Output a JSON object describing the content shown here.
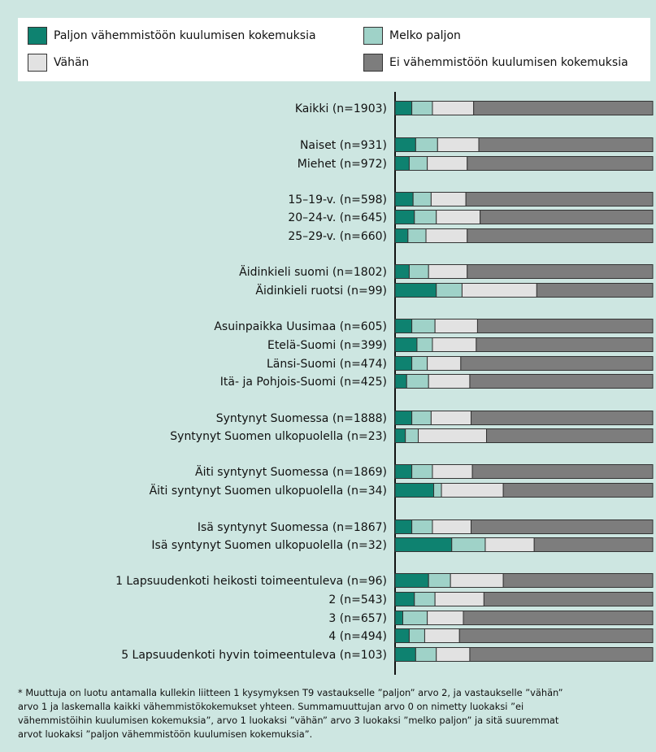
{
  "legend": {
    "items": [
      {
        "label": "Paljon vähemmistöön kuulumisen kokemuksia",
        "color": "#0e8270"
      },
      {
        "label": "Melko paljon",
        "color": "#9fd2c8"
      },
      {
        "label": "Vähän",
        "color": "#e2e2e2"
      },
      {
        "label": "Ei vähemmistöön kuulumisen kokemuksia",
        "color": "#7d7d7d"
      }
    ]
  },
  "chart_data": {
    "type": "bar",
    "orientation": "horizontal",
    "stacked": true,
    "xlim": [
      0,
      100
    ],
    "unit": "%",
    "grid": false,
    "legend_position": "top",
    "categories": [
      "Kaikki (n=1903)",
      "Naiset (n=931)",
      "Miehet (n=972)",
      "15–19-v. (n=598)",
      "20–24-v. (n=645)",
      "25–29-v. (n=660)",
      "Äidinkieli suomi (n=1802)",
      "Äidinkieli ruotsi (n=99)",
      "Asuinpaikka Uusimaa (n=605)",
      "Etelä-Suomi (n=399)",
      "Länsi-Suomi (n=474)",
      "Itä- ja Pohjois-Suomi (n=425)",
      "Syntynyt Suomessa (n=1888)",
      "Syntynyt Suomen ulkopuolella (n=23)",
      "Äiti syntynyt Suomessa (n=1869)",
      "Äiti syntynyt Suomen ulkopuolella (n=34)",
      "Isä syntynyt Suomessa (n=1867)",
      "Isä syntynyt Suomen ulkopuolella (n=32)",
      "1 Lapsuudenkoti heikosti toimeentuleva (n=96)",
      "2 (n=543)",
      "3 (n=657)",
      "4 (n=494)",
      "5 Lapsuudenkoti hyvin toimeentuleva (n=103)"
    ],
    "series": [
      {
        "name": "Paljon vähemmistöön kuulumisen kokemuksia",
        "values": [
          6.5,
          8,
          5.5,
          7,
          7.5,
          5,
          5.5,
          16,
          6.5,
          8.5,
          6.5,
          4.5,
          6.5,
          4,
          6.5,
          15,
          6.5,
          22,
          13,
          7.5,
          3,
          5.5,
          8
        ]
      },
      {
        "name": "Melko paljon",
        "values": [
          8,
          8.5,
          7,
          7,
          8.5,
          7,
          7.5,
          10,
          9,
          6,
          6,
          8.5,
          7.5,
          5,
          8,
          3,
          8,
          13,
          8.5,
          8,
          9.5,
          6,
          8
        ]
      },
      {
        "name": "Vähän",
        "values": [
          16,
          16,
          15.5,
          13.5,
          17,
          16,
          15,
          29,
          16.5,
          17,
          13,
          16,
          15.5,
          26.5,
          15.5,
          24,
          15,
          19,
          20.5,
          19,
          14,
          13.5,
          13
        ]
      },
      {
        "name": "Ei vähemmistöön kuulumisen kokemuksia",
        "values": [
          69.5,
          67.5,
          72,
          72.5,
          67,
          72,
          72,
          45,
          68,
          68.5,
          74.5,
          71,
          70.5,
          64.5,
          70,
          58,
          70.5,
          46,
          58,
          65.5,
          73.5,
          75,
          71
        ]
      }
    ]
  },
  "footnote": "* Muuttuja on luotu antamalla  kullekin liitteen 1 kysymyksen T9 vastaukselle ”paljon” arvo 2, ja vastaukselle ”vähän”\narvo 1 ja laskemalla kaikki vähemmistökokemukset yhteen. Summamuuttujan arvo 0  on nimetty luokaksi ”ei\nvähemmistöihin kuulumisen kokemuksia”,  arvo 1 luokaksi ”vähän”  arvo 3 luokaksi ”melko paljon” ja sitä suuremmat\narvot luokaksi ”paljon vähemmistöön kuulumisen kokemuksia”."
}
